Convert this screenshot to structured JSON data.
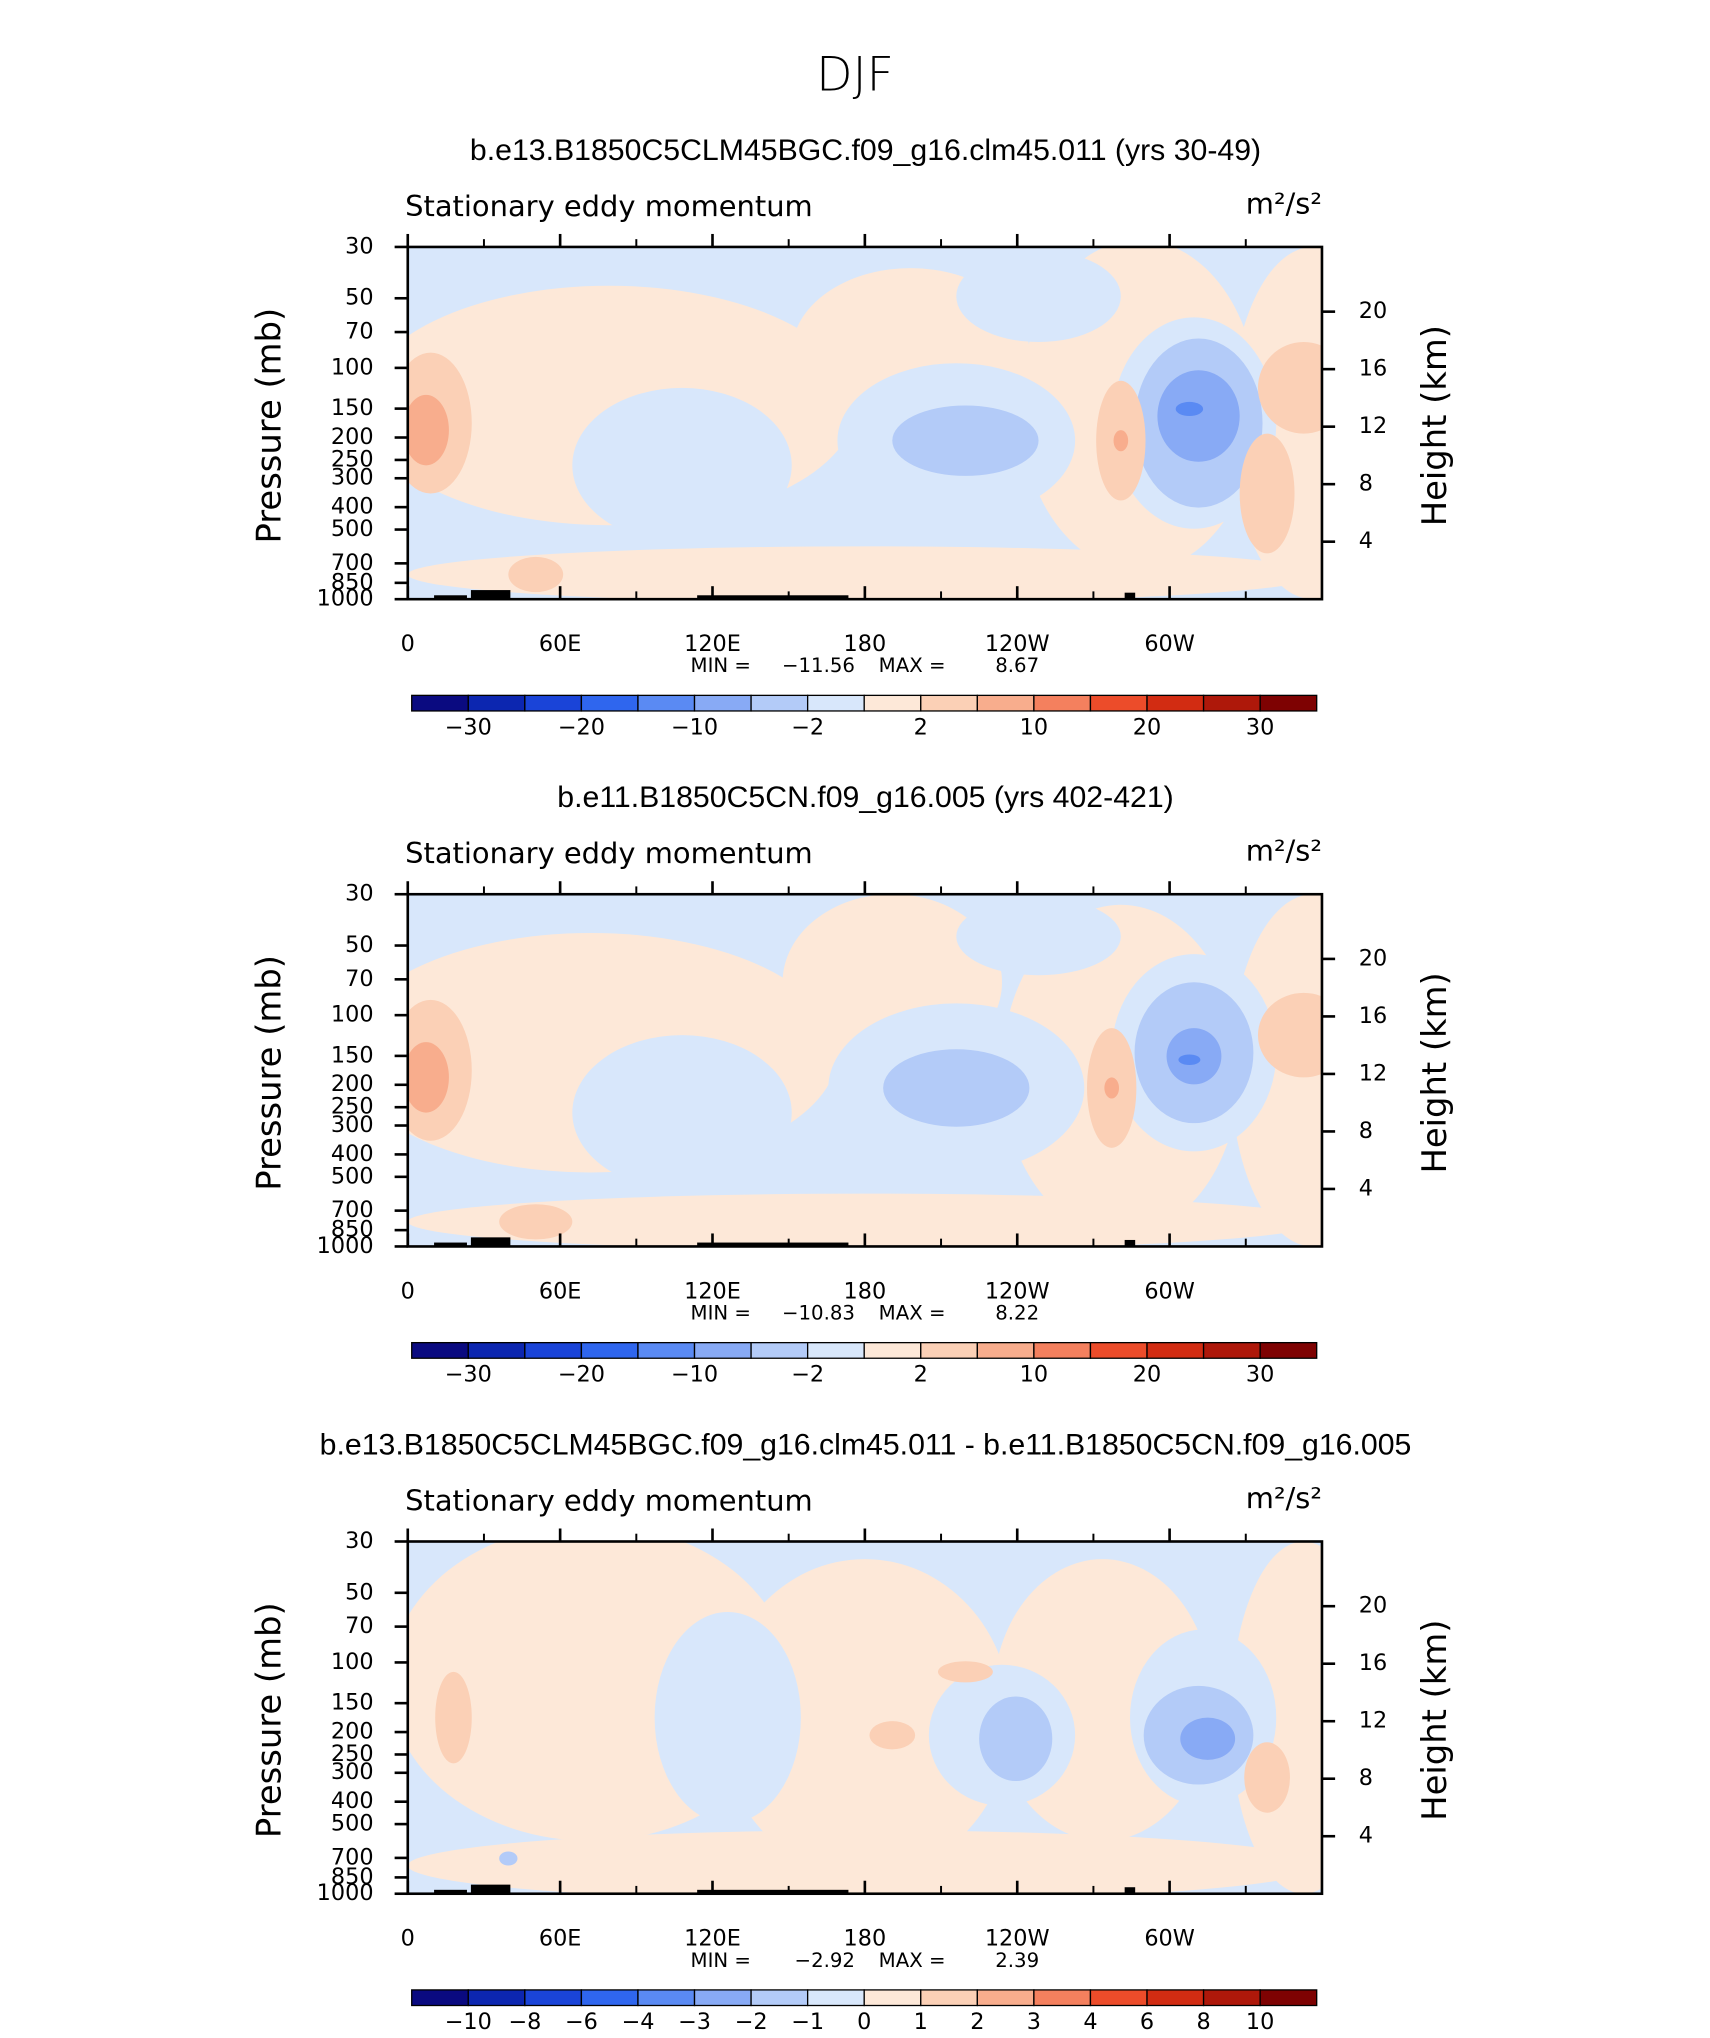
{
  "title": "DJF",
  "ylabel": "Pressure (mb)",
  "y2label": "Height (km)",
  "ylim": [
    30,
    1000
  ],
  "ylog": true,
  "yticks": [
    30,
    50,
    70,
    100,
    150,
    200,
    250,
    300,
    400,
    500,
    700,
    850,
    1000
  ],
  "y2lim": [
    0,
    24.5
  ],
  "y2ticks": [
    20,
    16,
    12,
    8,
    4
  ],
  "xlim": [
    0,
    360
  ],
  "xticks": [
    0,
    {
      "value": 60,
      "label": "60E"
    },
    {
      "value": 120,
      "label": "120E"
    },
    180,
    {
      "value": 240,
      "label": "120W"
    },
    {
      "value": 300,
      "label": "60W"
    }
  ],
  "x_minor_ticks": [
    30,
    90,
    150,
    210,
    270,
    330
  ],
  "colorbar_colors": [
    "#0a0a80",
    "#0c26b0",
    "#1a44d8",
    "#2f66ee",
    "#5a8af3",
    "#88aaf5",
    "#b3cbf8",
    "#d8e7fb",
    "#fde8d8",
    "#fbd0b6",
    "#f8ad8d",
    "#f4805e",
    "#ec4c2a",
    "#d22c12",
    "#ae180a",
    "#7e0202"
  ],
  "panels": [
    {
      "title": "b.e13.B1850C5CLM45BGC.f09_g16.clm45.011 (yrs 30-49)",
      "left_label": "Stationary eddy momentum",
      "units": "m²/s²",
      "min_label": "MIN =",
      "min": "−11.56",
      "max_label": "MAX =",
      "max": "8.67",
      "colorbar_labels": [
        "−30",
        "−20",
        "−10",
        "−2",
        "2",
        "10",
        "20",
        "30"
      ]
    },
    {
      "title": "b.e11.B1850C5CN.f09_g16.005 (yrs 402-421)",
      "left_label": "Stationary eddy momentum",
      "units": "m²/s²",
      "min_label": "MIN =",
      "min": "−10.83",
      "max_label": "MAX =",
      "max": "8.22",
      "colorbar_labels": [
        "−30",
        "−20",
        "−10",
        "−2",
        "2",
        "10",
        "20",
        "30"
      ]
    },
    {
      "title": "b.e13.B1850C5CLM45BGC.f09_g16.clm45.011 - b.e11.B1850C5CN.f09_g16.005",
      "left_label": "Stationary eddy momentum",
      "units": "m²/s²",
      "min_label": "MIN =",
      "min": "−2.92",
      "max_label": "MAX =",
      "max": "2.39",
      "colorbar_labels": [
        "−10",
        "−8",
        "−6",
        "−4",
        "−3",
        "−2",
        "−1",
        "0",
        "1",
        "2",
        "3",
        "4",
        "6",
        "8",
        "10"
      ]
    }
  ]
}
